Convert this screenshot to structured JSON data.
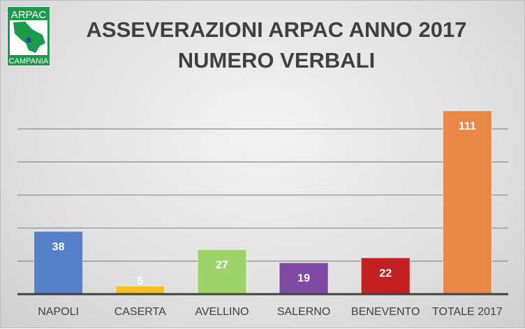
{
  "logo": {
    "top_text": "ARPAC",
    "bottom_text": "CAMPANIA",
    "color": "#1a9a4a"
  },
  "chart_data": {
    "type": "bar",
    "title": "ASSEVERAZIONI ARPAC ANNO 2017",
    "subtitle": "NUMERO VERBALI",
    "categories": [
      "NAPOLI",
      "CASERTA",
      "AVELLINO",
      "SALERNO",
      "BENEVENTO",
      "TOTALE 2017"
    ],
    "values": [
      38,
      5,
      27,
      19,
      22,
      111
    ],
    "colors": [
      "#5680c8",
      "#f5c023",
      "#9ed36a",
      "#7e4aa4",
      "#c42122",
      "#e9884a"
    ],
    "ylim": [
      0,
      120
    ],
    "grid": true,
    "data_labels": true,
    "xlabel": "",
    "ylabel": ""
  }
}
